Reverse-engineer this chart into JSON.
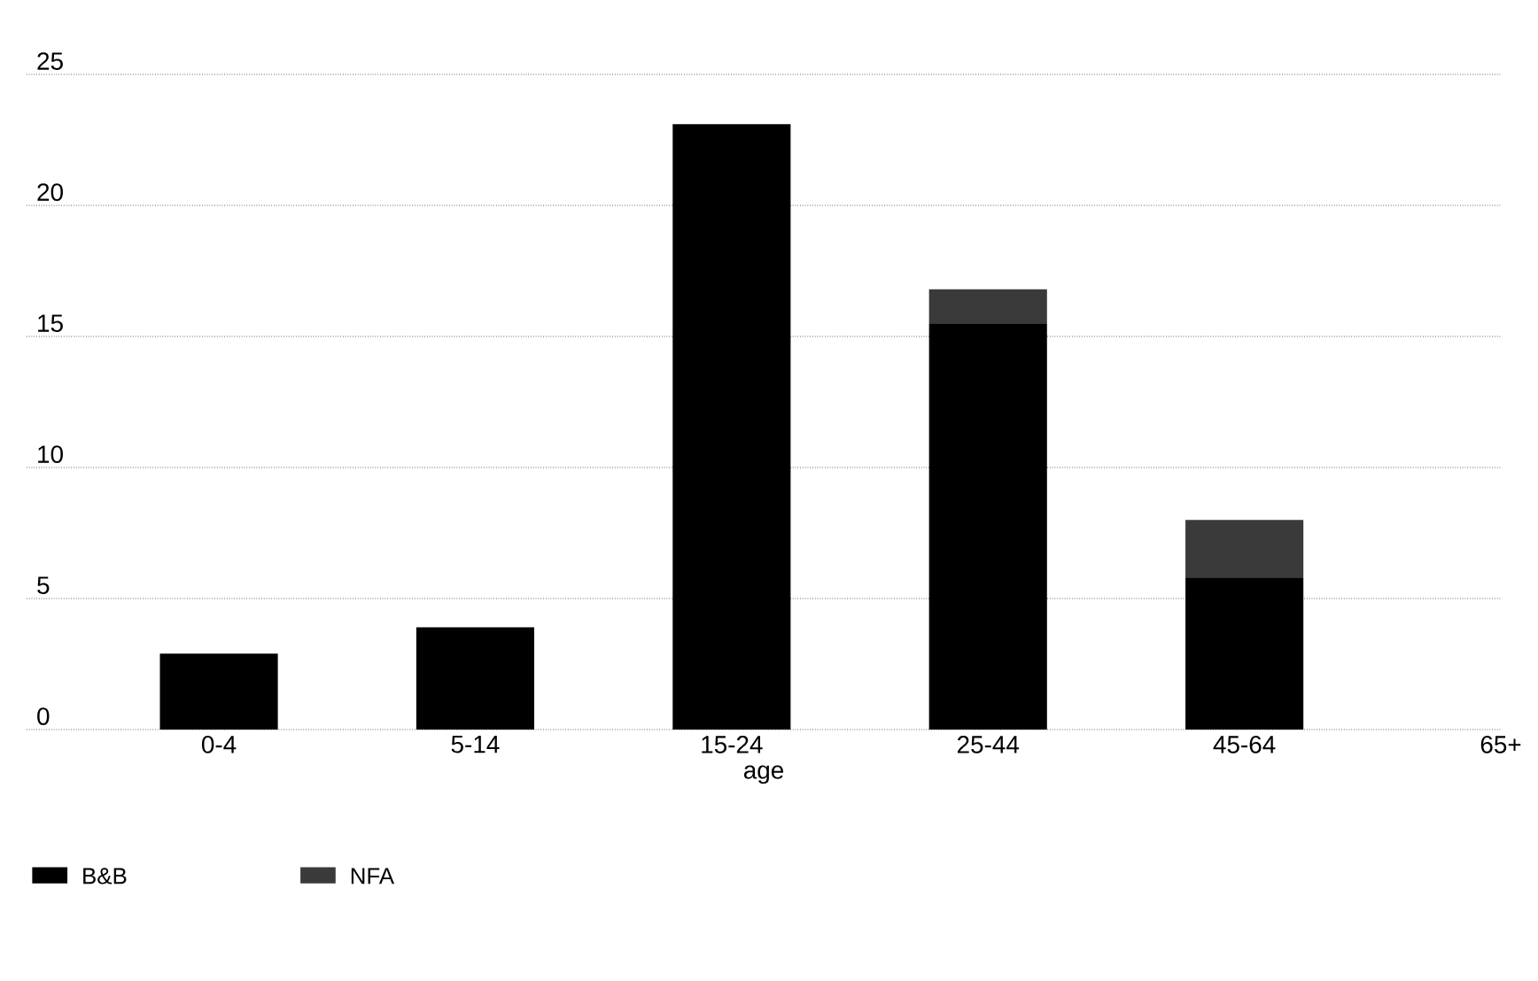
{
  "chart_data": {
    "type": "bar",
    "xlabel": "age",
    "categories": [
      "0-4",
      "5-14",
      "15-24",
      "25-44",
      "45-64",
      "65+"
    ],
    "series": [
      {
        "name": "B&B",
        "color": "#000000",
        "values": [
          2.9,
          3.9,
          23.1,
          15.5,
          5.8,
          0
        ]
      },
      {
        "name": "NFA",
        "color": "#3a3a3a",
        "values": [
          0,
          0,
          0,
          1.3,
          2.2,
          0
        ]
      }
    ],
    "stacked": true,
    "ylim": [
      0,
      25
    ],
    "yticks": [
      0,
      5,
      10,
      15,
      20,
      25
    ],
    "grid": "y",
    "legend": "bottom"
  }
}
